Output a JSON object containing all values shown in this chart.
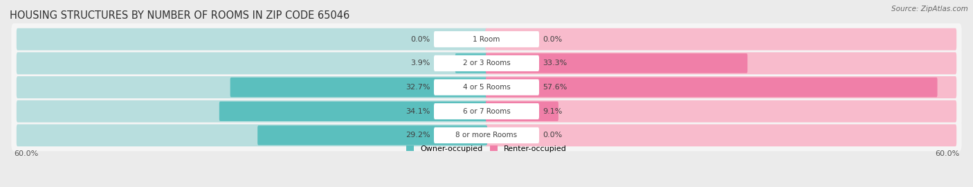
{
  "title": "HOUSING STRUCTURES BY NUMBER OF ROOMS IN ZIP CODE 65046",
  "source": "Source: ZipAtlas.com",
  "categories": [
    "1 Room",
    "2 or 3 Rooms",
    "4 or 5 Rooms",
    "6 or 7 Rooms",
    "8 or more Rooms"
  ],
  "owner_values": [
    0.0,
    3.9,
    32.7,
    34.1,
    29.2
  ],
  "renter_values": [
    0.0,
    33.3,
    57.6,
    9.1,
    0.0
  ],
  "owner_color": "#5BBFBE",
  "renter_color": "#F07FA8",
  "owner_color_light": "#B8DEDE",
  "renter_color_light": "#F8BBCC",
  "xlim": 60.0,
  "background_color": "#EBEBEB",
  "row_bg_color": "#F5F5F5",
  "title_fontsize": 10.5,
  "label_fontsize": 8.0,
  "source_fontsize": 7.5,
  "cat_fontsize": 7.5
}
